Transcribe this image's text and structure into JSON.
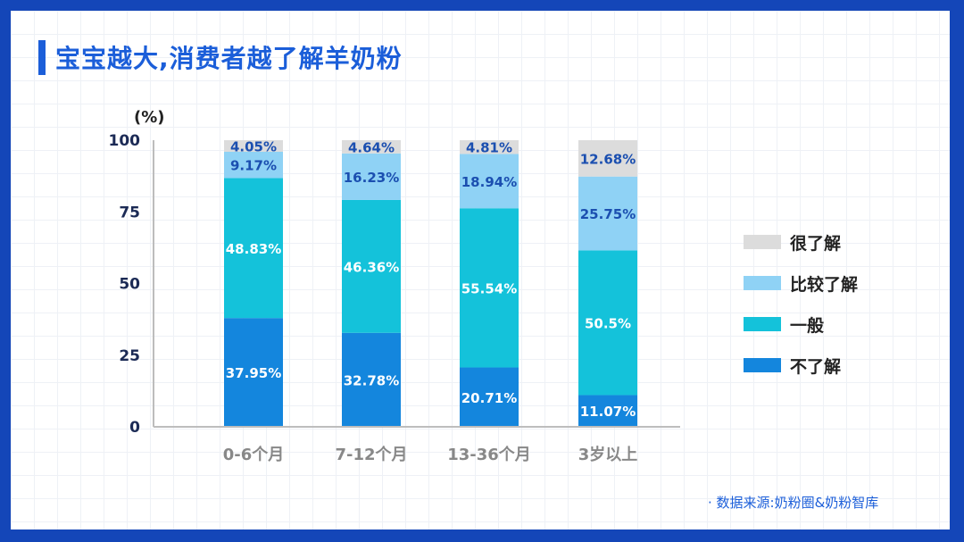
{
  "title": "宝宝越大,消费者越了解羊奶粉",
  "unit_label": "(%)",
  "source": "· 数据来源:奶粉圈&奶粉智库",
  "colors": {
    "很了解": "#dcdcdc",
    "比较了解": "#8fd2f5",
    "一般": "#14c2da",
    "不了解": "#1486dd"
  },
  "chart_data": {
    "type": "bar",
    "stacked": true,
    "categories": [
      "0-6个月",
      "7-12个月",
      "13-36个月",
      "3岁以上"
    ],
    "series": [
      {
        "name": "不了解",
        "values": [
          37.95,
          32.78,
          20.71,
          11.07
        ],
        "labels": [
          "37.95%",
          "32.78%",
          "20.71%",
          "11.07%"
        ]
      },
      {
        "name": "一般",
        "values": [
          48.83,
          46.36,
          55.54,
          50.5
        ],
        "labels": [
          "48.83%",
          "46.36%",
          "55.54%",
          "50.5%"
        ]
      },
      {
        "name": "比较了解",
        "values": [
          9.17,
          16.23,
          18.94,
          25.75
        ],
        "labels": [
          "9.17%",
          "16.23%",
          "18.94%",
          "25.75%"
        ]
      },
      {
        "name": "很了解",
        "values": [
          4.05,
          4.64,
          4.81,
          12.68
        ],
        "labels": [
          "4.05%",
          "4.64%",
          "4.81%",
          "12.68%"
        ]
      }
    ],
    "legend_order": [
      "很了解",
      "比较了解",
      "一般",
      "不了解"
    ],
    "y_ticks": [
      "0",
      "25",
      "50",
      "75",
      "100"
    ],
    "ylim": [
      0,
      100
    ],
    "legend_position": "right",
    "grid": false
  }
}
